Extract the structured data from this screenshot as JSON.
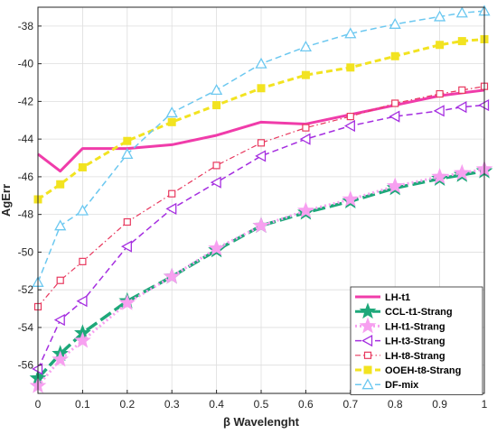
{
  "chart_data": {
    "type": "line",
    "title": "",
    "xlabel": "β Wavelenght",
    "ylabel": "AgErr",
    "xlim": [
      0,
      1
    ],
    "ylim": [
      -57.5,
      -37
    ],
    "xticks": [
      "0",
      "0.1",
      "0.2",
      "0.3",
      "0.4",
      "0.5",
      "0.6",
      "0.7",
      "0.8",
      "0.9",
      "1"
    ],
    "yticks": [
      "-38",
      "-40",
      "-42",
      "-44",
      "-46",
      "-48",
      "-50",
      "-52",
      "-54",
      "-56"
    ],
    "grid": true,
    "legend_position": "bottom-right",
    "series": [
      {
        "name": "LH-t1",
        "color": "#f03caa",
        "dash": "solid",
        "marker": "none",
        "width": 3,
        "x": [
          0,
          0.05,
          0.1,
          0.2,
          0.3,
          0.4,
          0.5,
          0.6,
          0.7,
          0.8,
          0.9,
          1
        ],
        "y": [
          -44.8,
          -45.7,
          -44.5,
          -44.5,
          -44.3,
          -43.8,
          -43.1,
          -43.2,
          -42.7,
          -42.2,
          -41.7,
          -41.4
        ]
      },
      {
        "name": "CCL-t1-Strang",
        "color": "#1ea87a",
        "dash": "longdash",
        "marker": "star",
        "width": 3.5,
        "x": [
          0,
          0.05,
          0.1,
          0.2,
          0.3,
          0.4,
          0.5,
          0.6,
          0.7,
          0.8,
          0.9,
          0.95,
          1
        ],
        "y": [
          -56.7,
          -55.4,
          -54.3,
          -52.6,
          -51.3,
          -49.9,
          -48.6,
          -47.9,
          -47.3,
          -46.6,
          -46.1,
          -45.9,
          -45.7
        ]
      },
      {
        "name": "LH-t1-Strang",
        "color": "#f7a0f0",
        "dash": "dot",
        "marker": "star",
        "width": 3,
        "x": [
          0,
          0.05,
          0.1,
          0.2,
          0.3,
          0.4,
          0.5,
          0.6,
          0.7,
          0.8,
          0.9,
          0.95,
          1
        ],
        "y": [
          -57.1,
          -55.7,
          -54.7,
          -52.7,
          -51.3,
          -49.8,
          -48.6,
          -47.8,
          -47.2,
          -46.5,
          -46.0,
          -45.8,
          -45.6
        ]
      },
      {
        "name": "LH-t3-Strang",
        "color": "#a52ee0",
        "dash": "dash",
        "marker": "triangle-left",
        "width": 1.5,
        "x": [
          0,
          0.05,
          0.1,
          0.2,
          0.3,
          0.4,
          0.5,
          0.6,
          0.7,
          0.8,
          0.9,
          0.95,
          1
        ],
        "y": [
          -56.2,
          -53.6,
          -52.6,
          -49.7,
          -47.7,
          -46.3,
          -44.9,
          -44.0,
          -43.3,
          -42.8,
          -42.5,
          -42.3,
          -42.2
        ]
      },
      {
        "name": "LH-t8-Strang",
        "color": "#e8385e",
        "dash": "dashdot",
        "marker": "square",
        "width": 1.2,
        "x": [
          0,
          0.05,
          0.1,
          0.2,
          0.3,
          0.4,
          0.5,
          0.6,
          0.7,
          0.8,
          0.9,
          0.95,
          1
        ],
        "y": [
          -52.9,
          -51.5,
          -50.5,
          -48.4,
          -46.9,
          -45.4,
          -44.2,
          -43.4,
          -42.8,
          -42.1,
          -41.6,
          -41.4,
          -41.2
        ]
      },
      {
        "name": "OOEH-t8-Strang",
        "color": "#f2e321",
        "dash": "dash",
        "marker": "square-filled",
        "width": 3,
        "x": [
          0,
          0.05,
          0.1,
          0.2,
          0.3,
          0.4,
          0.5,
          0.6,
          0.7,
          0.8,
          0.9,
          0.95,
          1
        ],
        "y": [
          -47.2,
          -46.4,
          -45.5,
          -44.1,
          -43.1,
          -42.2,
          -41.3,
          -40.6,
          -40.2,
          -39.6,
          -39.0,
          -38.8,
          -38.7
        ]
      },
      {
        "name": "DF-mix",
        "color": "#6cc8f0",
        "dash": "dash",
        "marker": "triangle-up",
        "width": 1.5,
        "x": [
          0,
          0.05,
          0.1,
          0.2,
          0.3,
          0.4,
          0.5,
          0.6,
          0.7,
          0.8,
          0.9,
          0.95,
          1
        ],
        "y": [
          -51.6,
          -48.6,
          -47.8,
          -44.8,
          -42.6,
          -41.4,
          -40.0,
          -39.1,
          -38.4,
          -37.9,
          -37.5,
          -37.3,
          -37.2
        ]
      }
    ]
  }
}
